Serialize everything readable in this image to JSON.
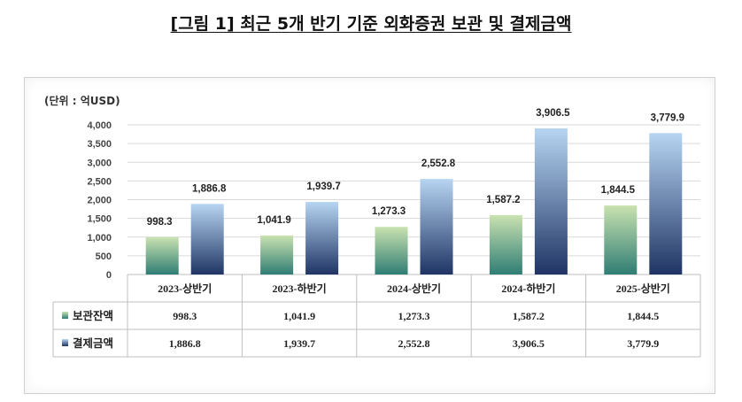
{
  "title": "[그림 1] 최근 5개 반기 기준 외화증권 보관 및 결제금액",
  "chart_data": {
    "type": "bar",
    "unit_label": "(단위 : 억USD)",
    "categories": [
      "2023-상반기",
      "2023-하반기",
      "2024-상반기",
      "2024-하반기",
      "2025-상반기"
    ],
    "series": [
      {
        "name": "보관잔액",
        "values": [
          998.3,
          1041.9,
          1273.3,
          1587.2,
          1844.5
        ],
        "labels": [
          "998.3",
          "1,041.9",
          "1,273.3",
          "1,587.2",
          "1,844.5"
        ],
        "color_top": "#c9e2b0",
        "color_bottom": "#2f7d74"
      },
      {
        "name": "결제금액",
        "values": [
          1886.8,
          1939.7,
          2552.8,
          3906.5,
          3779.9
        ],
        "labels": [
          "1,886.8",
          "1,939.7",
          "2,552.8",
          "3,906.5",
          "3,779.9"
        ],
        "color_top": "#b7d5f2",
        "color_bottom": "#1f3464"
      }
    ],
    "yticks": [
      "0",
      "500",
      "1,000",
      "1,500",
      "2,000",
      "2,500",
      "3,000",
      "3,500",
      "4,000"
    ],
    "ylim": [
      0,
      4000
    ],
    "grid": true,
    "legend": "data-table"
  }
}
